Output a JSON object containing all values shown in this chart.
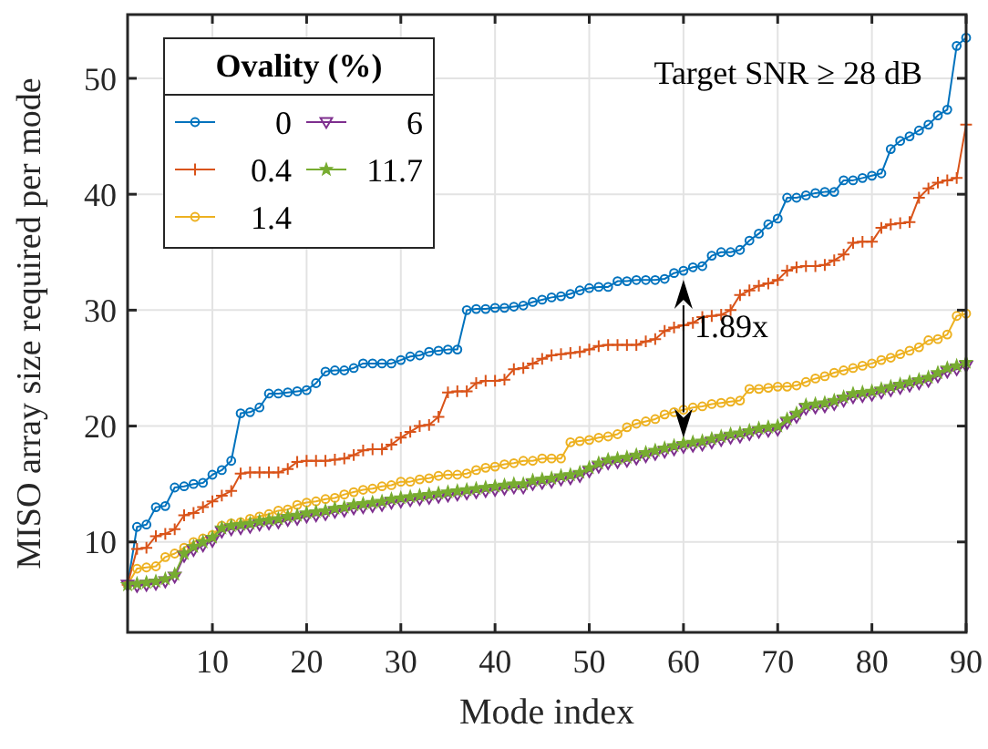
{
  "chart_data": {
    "type": "line",
    "xlabel": "Mode index",
    "ylabel": "MISO array size required per mode",
    "legend_title": "Ovality (%)",
    "legend": "top left",
    "grid": true,
    "x": [
      1,
      2,
      3,
      4,
      5,
      6,
      7,
      8,
      9,
      10,
      11,
      12,
      13,
      14,
      15,
      16,
      17,
      18,
      19,
      20,
      21,
      22,
      23,
      24,
      25,
      26,
      27,
      28,
      29,
      30,
      31,
      32,
      33,
      34,
      35,
      36,
      37,
      38,
      39,
      40,
      41,
      42,
      43,
      44,
      45,
      46,
      47,
      48,
      49,
      50,
      51,
      52,
      53,
      54,
      55,
      56,
      57,
      58,
      59,
      60,
      61,
      62,
      63,
      64,
      65,
      66,
      67,
      68,
      69,
      70,
      71,
      72,
      73,
      74,
      75,
      76,
      77,
      78,
      79,
      80,
      81,
      82,
      83,
      84,
      85,
      86,
      87,
      88,
      89,
      90
    ],
    "xlim": [
      1,
      90
    ],
    "xticks": [
      10,
      20,
      30,
      40,
      50,
      60,
      70,
      80,
      90
    ],
    "ylim": [
      2.2,
      55.5
    ],
    "yticks": [
      10,
      20,
      30,
      40,
      50
    ],
    "series": [
      {
        "name": "0",
        "color": "#0072bd",
        "marker": "circle",
        "values": [
          6.3,
          11.3,
          11.5,
          13.0,
          13.1,
          14.7,
          14.8,
          15.0,
          15.1,
          15.8,
          16.2,
          17.0,
          21.1,
          21.2,
          21.6,
          22.8,
          22.8,
          22.9,
          23.0,
          23.1,
          23.7,
          24.7,
          24.8,
          24.8,
          25.0,
          25.4,
          25.4,
          25.4,
          25.4,
          25.7,
          26.0,
          26.1,
          26.4,
          26.5,
          26.6,
          26.6,
          30.0,
          30.1,
          30.1,
          30.2,
          30.2,
          30.3,
          30.4,
          30.7,
          30.9,
          31.1,
          31.2,
          31.4,
          31.7,
          31.9,
          32.0,
          32.0,
          32.5,
          32.5,
          32.6,
          32.6,
          32.6,
          32.7,
          33.2,
          33.4,
          33.7,
          33.8,
          34.7,
          35.0,
          35.0,
          35.2,
          36.0,
          36.6,
          37.4,
          37.9,
          39.7,
          39.7,
          39.9,
          40.1,
          40.2,
          40.2,
          41.2,
          41.2,
          41.4,
          41.6,
          41.8,
          43.9,
          44.6,
          45.0,
          45.5,
          46.0,
          46.8,
          47.3,
          52.8,
          53.5
        ]
      },
      {
        "name": "0.4",
        "color": "#d95319",
        "marker": "cross",
        "values": [
          6.3,
          9.4,
          9.5,
          10.5,
          10.7,
          11.1,
          12.3,
          12.5,
          13.0,
          13.5,
          14.0,
          14.4,
          15.9,
          16.0,
          16.0,
          16.0,
          16.0,
          16.3,
          16.9,
          17.0,
          17.0,
          17.0,
          17.1,
          17.2,
          17.5,
          17.9,
          18.0,
          18.0,
          18.4,
          19.0,
          19.5,
          20.0,
          20.1,
          20.8,
          22.9,
          23.0,
          23.0,
          23.7,
          23.9,
          23.9,
          24.0,
          24.9,
          25.0,
          25.4,
          25.8,
          26.1,
          26.2,
          26.3,
          26.4,
          26.6,
          26.9,
          27.0,
          27.0,
          27.0,
          27.0,
          27.3,
          27.5,
          28.2,
          28.5,
          28.7,
          28.9,
          29.4,
          29.5,
          29.6,
          30.0,
          31.3,
          31.7,
          32.1,
          32.3,
          32.6,
          33.4,
          33.7,
          33.8,
          33.8,
          33.9,
          34.3,
          34.8,
          35.8,
          35.9,
          35.9,
          37.1,
          37.4,
          37.5,
          37.6,
          39.7,
          40.5,
          41.0,
          41.2,
          41.4,
          46.0
        ]
      },
      {
        "name": "1.4",
        "color": "#edb120",
        "marker": "circle",
        "values": [
          6.3,
          7.7,
          7.8,
          7.9,
          8.7,
          9.0,
          9.5,
          10.0,
          10.3,
          10.6,
          11.4,
          11.6,
          11.7,
          12.0,
          12.2,
          12.4,
          12.7,
          12.8,
          13.2,
          13.4,
          13.5,
          13.7,
          13.8,
          14.1,
          14.3,
          14.5,
          14.6,
          14.8,
          14.9,
          15.2,
          15.2,
          15.4,
          15.5,
          15.7,
          15.8,
          15.8,
          15.9,
          16.2,
          16.4,
          16.5,
          16.7,
          16.8,
          17.0,
          17.0,
          17.2,
          17.2,
          17.2,
          18.6,
          18.7,
          18.8,
          19.0,
          19.1,
          19.3,
          19.9,
          20.2,
          20.4,
          20.6,
          21.0,
          21.2,
          21.4,
          21.6,
          21.7,
          21.9,
          22.0,
          22.1,
          22.2,
          23.2,
          23.2,
          23.3,
          23.4,
          23.4,
          23.5,
          23.8,
          24.1,
          24.3,
          24.6,
          24.8,
          25.0,
          25.2,
          25.4,
          25.7,
          25.9,
          26.2,
          26.5,
          26.8,
          27.4,
          27.5,
          27.9,
          29.5,
          29.7
        ]
      },
      {
        "name": "6",
        "color": "#7e2f8e",
        "marker": "triangle",
        "values": [
          6.3,
          6.2,
          6.3,
          6.4,
          6.6,
          7.0,
          8.8,
          9.3,
          9.7,
          10.1,
          10.9,
          11.1,
          11.2,
          11.3,
          11.5,
          11.6,
          11.7,
          11.9,
          12.0,
          12.2,
          12.3,
          12.4,
          12.6,
          12.7,
          12.9,
          13.0,
          13.1,
          13.2,
          13.4,
          13.5,
          13.6,
          13.7,
          13.8,
          13.9,
          14.0,
          14.1,
          14.2,
          14.3,
          14.4,
          14.5,
          14.6,
          14.7,
          14.7,
          15.0,
          15.1,
          15.2,
          15.4,
          15.5,
          15.7,
          16.1,
          16.5,
          16.8,
          16.9,
          17.0,
          17.2,
          17.4,
          17.6,
          17.8,
          18.0,
          18.2,
          18.3,
          18.4,
          18.6,
          18.8,
          19.0,
          19.1,
          19.3,
          19.5,
          19.6,
          19.7,
          20.3,
          20.8,
          21.5,
          21.6,
          21.7,
          21.9,
          22.2,
          22.5,
          22.6,
          22.7,
          22.9,
          23.1,
          23.3,
          23.5,
          23.7,
          23.9,
          24.3,
          24.7,
          24.9,
          25.2
        ]
      },
      {
        "name": "11.7",
        "color": "#77ac30",
        "marker": "star",
        "values": [
          6.3,
          6.4,
          6.5,
          6.6,
          6.8,
          7.2,
          9.0,
          9.6,
          10.0,
          10.4,
          11.2,
          11.4,
          11.5,
          11.6,
          11.8,
          11.9,
          12.0,
          12.2,
          12.3,
          12.5,
          12.6,
          12.7,
          12.9,
          13.0,
          13.2,
          13.3,
          13.4,
          13.5,
          13.7,
          13.8,
          13.9,
          14.0,
          14.1,
          14.2,
          14.3,
          14.4,
          14.5,
          14.6,
          14.7,
          14.8,
          14.9,
          15.0,
          15.0,
          15.3,
          15.4,
          15.5,
          15.7,
          15.8,
          16.0,
          16.4,
          16.8,
          17.1,
          17.2,
          17.3,
          17.5,
          17.7,
          17.9,
          18.1,
          18.3,
          18.5,
          18.6,
          18.7,
          18.9,
          19.1,
          19.3,
          19.4,
          19.6,
          19.8,
          19.9,
          20.0,
          20.6,
          21.1,
          21.8,
          21.9,
          22.0,
          22.2,
          22.5,
          22.8,
          22.9,
          23.0,
          23.2,
          23.4,
          23.6,
          23.8,
          24.0,
          24.2,
          24.6,
          25.0,
          25.2,
          25.5
        ]
      }
    ],
    "annotations": [
      "Target SNR ≥ 28 dB",
      {
        "text": "1.89x",
        "x": 60,
        "y": 33.4
      }
    ]
  }
}
